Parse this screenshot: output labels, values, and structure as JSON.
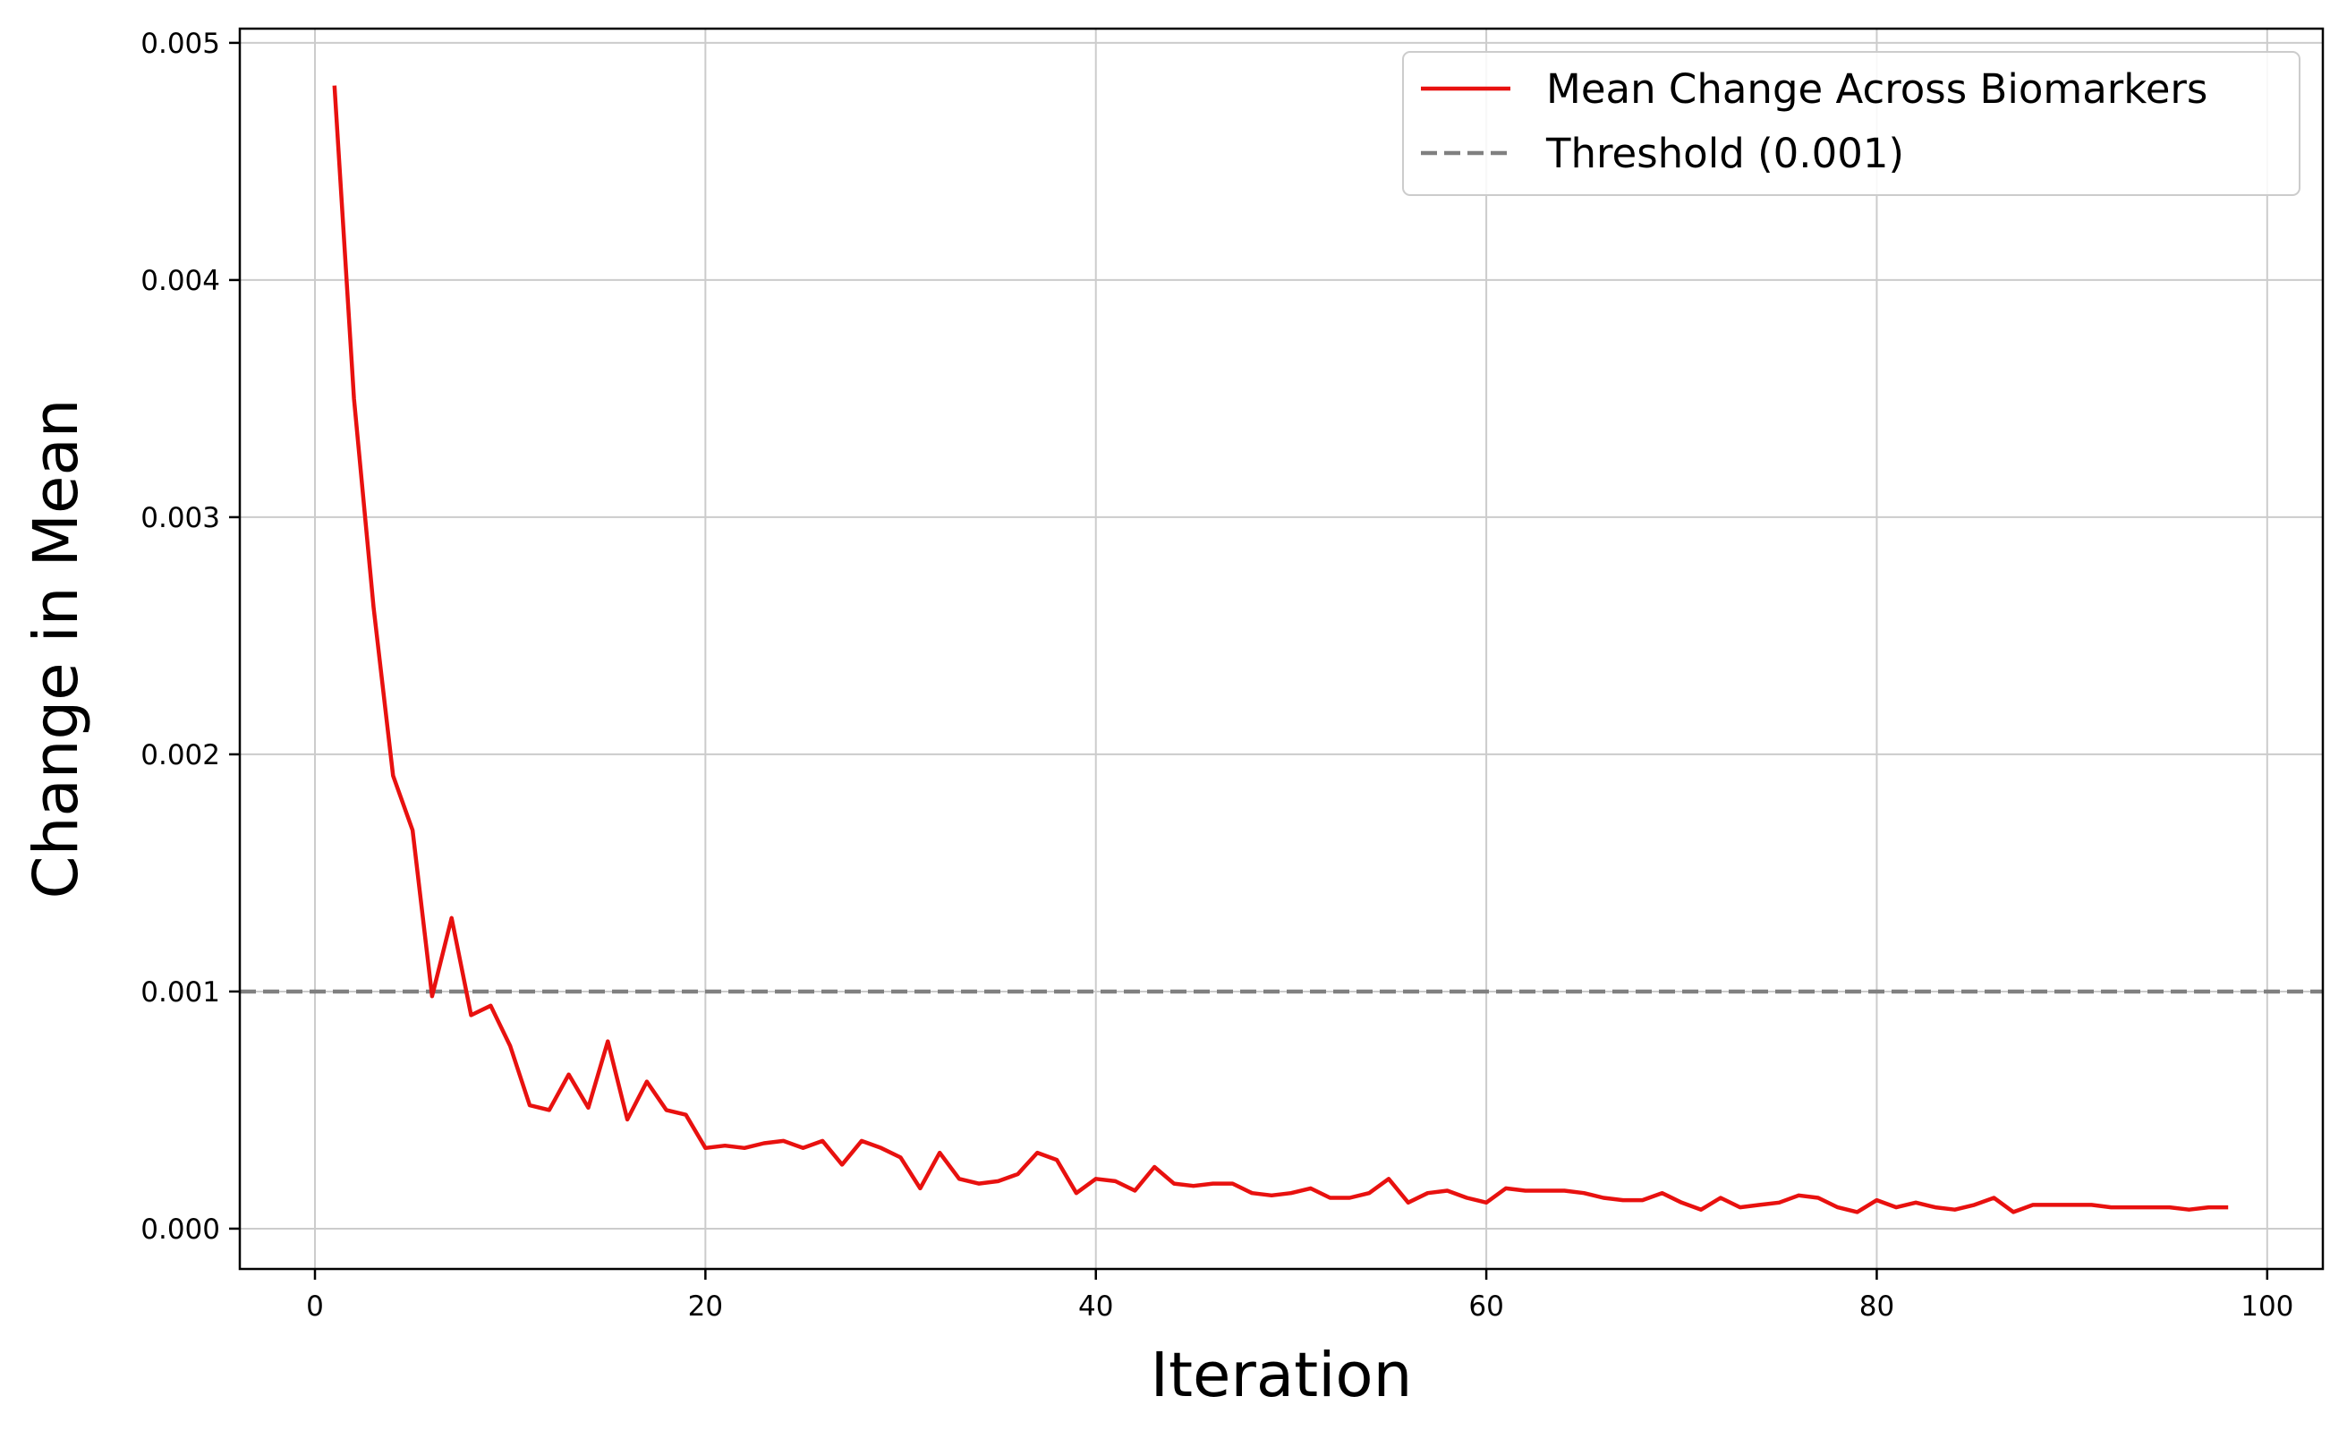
{
  "chart_data": {
    "type": "line",
    "title": "",
    "xlabel": "Iteration",
    "ylabel": "Change in Mean",
    "xlim": [
      -3.85,
      102.85
    ],
    "ylim": [
      -0.00017,
      0.00506
    ],
    "xticks": [
      0,
      20,
      40,
      60,
      80,
      100
    ],
    "yticks": [
      0.0,
      0.001,
      0.002,
      0.003,
      0.004,
      0.005
    ],
    "xtick_labels": [
      "0",
      "20",
      "40",
      "60",
      "80",
      "100"
    ],
    "ytick_labels": [
      "0.000",
      "0.001",
      "0.002",
      "0.003",
      "0.004",
      "0.005"
    ],
    "grid": true,
    "legend": {
      "placement": "top-right",
      "entries": [
        "Mean Change Across Biomarkers",
        "Threshold (0.001)"
      ]
    },
    "threshold": {
      "name": "Threshold (0.001)",
      "y": 0.001,
      "color": "#808080",
      "style": "dashed"
    },
    "series": [
      {
        "name": "Mean Change Across Biomarkers",
        "color": "#e8110f",
        "x": [
          1,
          2,
          3,
          4,
          5,
          6,
          7,
          8,
          9,
          10,
          11,
          12,
          13,
          14,
          15,
          16,
          17,
          18,
          19,
          20,
          21,
          22,
          23,
          24,
          25,
          26,
          27,
          28,
          29,
          30,
          31,
          32,
          33,
          34,
          35,
          36,
          37,
          38,
          39,
          40,
          41,
          42,
          43,
          44,
          45,
          46,
          47,
          48,
          49,
          50,
          51,
          52,
          53,
          54,
          55,
          56,
          57,
          58,
          59,
          60,
          61,
          62,
          63,
          64,
          65,
          66,
          67,
          68,
          69,
          70,
          71,
          72,
          73,
          74,
          75,
          76,
          77,
          78,
          79,
          80,
          81,
          82,
          83,
          84,
          85,
          86,
          87,
          88,
          89,
          90,
          91,
          92,
          93,
          94,
          95,
          96,
          97,
          98
        ],
        "y": [
          0.00482,
          0.0035,
          0.00262,
          0.00191,
          0.00168,
          0.00098,
          0.00131,
          0.0009,
          0.00094,
          0.00077,
          0.00052,
          0.0005,
          0.00065,
          0.00051,
          0.00079,
          0.00046,
          0.00062,
          0.0005,
          0.00048,
          0.00034,
          0.00035,
          0.00034,
          0.00036,
          0.00037,
          0.00034,
          0.00037,
          0.00027,
          0.00037,
          0.00034,
          0.0003,
          0.00017,
          0.00032,
          0.00021,
          0.00019,
          0.0002,
          0.00023,
          0.00032,
          0.00029,
          0.00015,
          0.00021,
          0.0002,
          0.00016,
          0.00026,
          0.00019,
          0.00018,
          0.00019,
          0.00019,
          0.00015,
          0.00014,
          0.00015,
          0.00017,
          0.00013,
          0.00013,
          0.00015,
          0.00021,
          0.00011,
          0.00015,
          0.00016,
          0.00013,
          0.00011,
          0.00017,
          0.00016,
          0.00016,
          0.00016,
          0.00015,
          0.00013,
          0.00012,
          0.00012,
          0.00015,
          0.00011,
          8e-05,
          0.00013,
          9e-05,
          0.0001,
          0.00011,
          0.00014,
          0.00013,
          9e-05,
          7e-05,
          0.00012,
          9e-05,
          0.00011,
          9e-05,
          8e-05,
          0.0001,
          0.00013,
          7e-05,
          0.0001,
          0.0001,
          0.0001,
          0.0001,
          9e-05,
          9e-05,
          9e-05,
          9e-05,
          8e-05,
          9e-05,
          9e-05
        ]
      }
    ]
  }
}
